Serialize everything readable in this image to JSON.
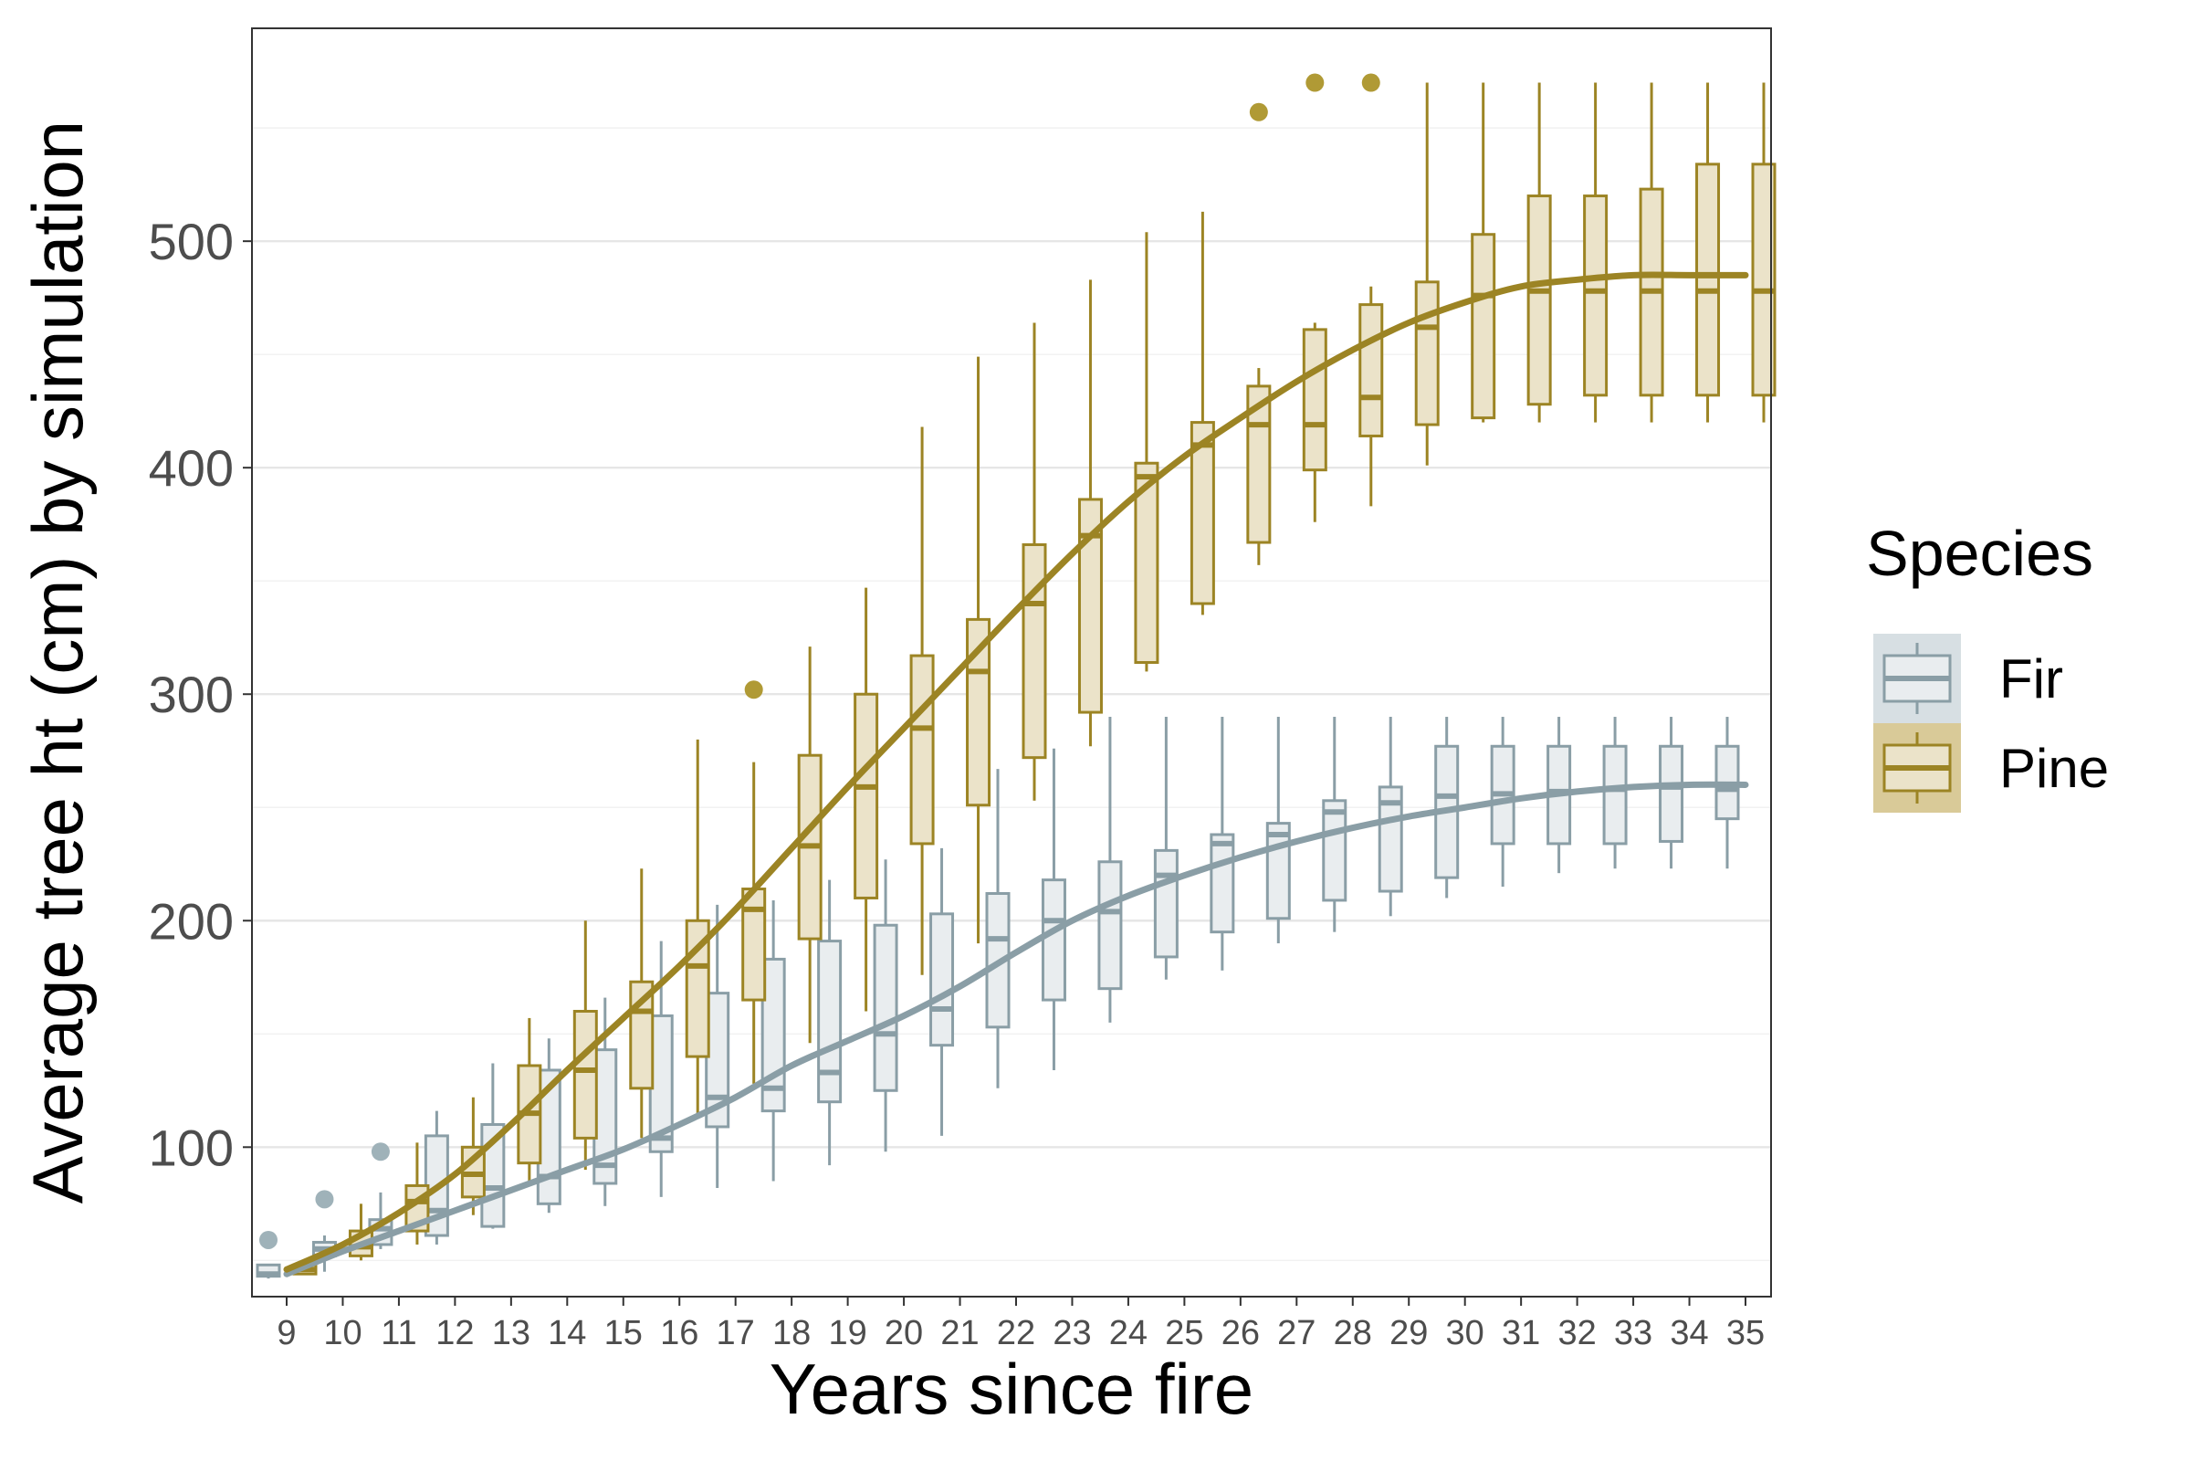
{
  "chart_data": {
    "type": "box",
    "xlabel": "Years since fire",
    "ylabel": "Average tree ht (cm) by simulation",
    "categories": [
      "9",
      "10",
      "11",
      "12",
      "13",
      "14",
      "15",
      "16",
      "17",
      "18",
      "19",
      "20",
      "21",
      "22",
      "23",
      "24",
      "25",
      "26",
      "27",
      "28",
      "29",
      "30",
      "31",
      "32",
      "33",
      "34",
      "35"
    ],
    "ylim": [
      34,
      594
    ],
    "yticks": [
      100,
      200,
      300,
      400,
      500
    ],
    "grid": "horizontal",
    "legend": {
      "title": "Species",
      "position": "right",
      "entries": [
        "Fir",
        "Pine"
      ]
    },
    "series": [
      {
        "name": "Fir",
        "color": "#8a9ea6",
        "fill": "#e9edef",
        "boxes": [
          {
            "x": "9",
            "min": 42,
            "q1": 43,
            "median": 44,
            "q3": 48,
            "max": 48,
            "outliers": [
              59
            ]
          },
          {
            "x": "10",
            "min": 45,
            "q1": 52,
            "median": 55,
            "q3": 58,
            "max": 61,
            "outliers": [
              77
            ]
          },
          {
            "x": "11",
            "min": 55,
            "q1": 57,
            "median": 64,
            "q3": 68,
            "max": 80,
            "outliers": [
              98
            ]
          },
          {
            "x": "12",
            "min": 57,
            "q1": 61,
            "median": 72,
            "q3": 105,
            "max": 116,
            "outliers": []
          },
          {
            "x": "13",
            "min": 64,
            "q1": 65,
            "median": 82,
            "q3": 110,
            "max": 137,
            "outliers": []
          },
          {
            "x": "14",
            "min": 71,
            "q1": 75,
            "median": 87,
            "q3": 134,
            "max": 148,
            "outliers": []
          },
          {
            "x": "15",
            "min": 74,
            "q1": 84,
            "median": 92,
            "q3": 143,
            "max": 166,
            "outliers": []
          },
          {
            "x": "16",
            "min": 78,
            "q1": 98,
            "median": 104,
            "q3": 158,
            "max": 191,
            "outliers": []
          },
          {
            "x": "17",
            "min": 82,
            "q1": 109,
            "median": 122,
            "q3": 168,
            "max": 207,
            "outliers": []
          },
          {
            "x": "18",
            "min": 85,
            "q1": 116,
            "median": 126,
            "q3": 183,
            "max": 209,
            "outliers": []
          },
          {
            "x": "19",
            "min": 92,
            "q1": 120,
            "median": 133,
            "q3": 191,
            "max": 218,
            "outliers": []
          },
          {
            "x": "20",
            "min": 98,
            "q1": 125,
            "median": 150,
            "q3": 198,
            "max": 227,
            "outliers": []
          },
          {
            "x": "21",
            "min": 105,
            "q1": 145,
            "median": 161,
            "q3": 203,
            "max": 232,
            "outliers": []
          },
          {
            "x": "22",
            "min": 126,
            "q1": 153,
            "median": 192,
            "q3": 212,
            "max": 267,
            "outliers": []
          },
          {
            "x": "23",
            "min": 134,
            "q1": 165,
            "median": 200,
            "q3": 218,
            "max": 276,
            "outliers": []
          },
          {
            "x": "24",
            "min": 155,
            "q1": 170,
            "median": 204,
            "q3": 226,
            "max": 290,
            "outliers": []
          },
          {
            "x": "25",
            "min": 174,
            "q1": 184,
            "median": 220,
            "q3": 231,
            "max": 290,
            "outliers": []
          },
          {
            "x": "26",
            "min": 178,
            "q1": 195,
            "median": 234,
            "q3": 238,
            "max": 290,
            "outliers": []
          },
          {
            "x": "27",
            "min": 190,
            "q1": 201,
            "median": 238,
            "q3": 243,
            "max": 290,
            "outliers": []
          },
          {
            "x": "28",
            "min": 195,
            "q1": 209,
            "median": 248,
            "q3": 253,
            "max": 290,
            "outliers": []
          },
          {
            "x": "29",
            "min": 202,
            "q1": 213,
            "median": 252,
            "q3": 259,
            "max": 290,
            "outliers": []
          },
          {
            "x": "30",
            "min": 210,
            "q1": 219,
            "median": 255,
            "q3": 277,
            "max": 290,
            "outliers": []
          },
          {
            "x": "31",
            "min": 215,
            "q1": 234,
            "median": 256,
            "q3": 277,
            "max": 290,
            "outliers": []
          },
          {
            "x": "32",
            "min": 221,
            "q1": 234,
            "median": 257,
            "q3": 277,
            "max": 290,
            "outliers": []
          },
          {
            "x": "33",
            "min": 223,
            "q1": 234,
            "median": 258,
            "q3": 277,
            "max": 290,
            "outliers": []
          },
          {
            "x": "34",
            "min": 223,
            "q1": 235,
            "median": 259,
            "q3": 277,
            "max": 290,
            "outliers": []
          },
          {
            "x": "35",
            "min": 223,
            "q1": 245,
            "median": 258,
            "q3": 277,
            "max": 290,
            "outliers": []
          }
        ],
        "smooth": [
          44,
          54,
          63,
          72,
          81,
          90,
          99,
          110,
          122,
          136,
          147,
          158,
          171,
          186,
          200,
          211,
          220,
          228,
          235,
          241,
          246,
          250,
          254,
          257,
          259,
          260,
          260
        ]
      },
      {
        "name": "Pine",
        "color": "#9c8424",
        "fill": "#ebe3c9",
        "boxes": [
          {
            "x": "9",
            "min": 44,
            "q1": 44,
            "median": 46,
            "q3": 48,
            "max": 48,
            "outliers": []
          },
          {
            "x": "10",
            "min": 50,
            "q1": 52,
            "median": 56,
            "q3": 63,
            "max": 75,
            "outliers": []
          },
          {
            "x": "11",
            "min": 57,
            "q1": 63,
            "median": 76,
            "q3": 83,
            "max": 102,
            "outliers": []
          },
          {
            "x": "12",
            "min": 70,
            "q1": 78,
            "median": 88,
            "q3": 100,
            "max": 122,
            "outliers": []
          },
          {
            "x": "13",
            "min": 83,
            "q1": 93,
            "median": 115,
            "q3": 136,
            "max": 157,
            "outliers": []
          },
          {
            "x": "14",
            "min": 90,
            "q1": 104,
            "median": 134,
            "q3": 160,
            "max": 200,
            "outliers": []
          },
          {
            "x": "15",
            "min": 104,
            "q1": 126,
            "median": 160,
            "q3": 173,
            "max": 223,
            "outliers": []
          },
          {
            "x": "16",
            "min": 114,
            "q1": 140,
            "median": 180,
            "q3": 200,
            "max": 280,
            "outliers": []
          },
          {
            "x": "17",
            "min": 128,
            "q1": 165,
            "median": 205,
            "q3": 214,
            "max": 270,
            "outliers": [
              302
            ]
          },
          {
            "x": "18",
            "min": 146,
            "q1": 192,
            "median": 233,
            "q3": 273,
            "max": 321,
            "outliers": []
          },
          {
            "x": "19",
            "min": 160,
            "q1": 210,
            "median": 259,
            "q3": 300,
            "max": 347,
            "outliers": []
          },
          {
            "x": "20",
            "min": 176,
            "q1": 234,
            "median": 285,
            "q3": 317,
            "max": 418,
            "outliers": []
          },
          {
            "x": "21",
            "min": 190,
            "q1": 251,
            "median": 310,
            "q3": 333,
            "max": 449,
            "outliers": []
          },
          {
            "x": "22",
            "min": 253,
            "q1": 272,
            "median": 340,
            "q3": 366,
            "max": 464,
            "outliers": []
          },
          {
            "x": "23",
            "min": 277,
            "q1": 292,
            "median": 370,
            "q3": 386,
            "max": 483,
            "outliers": []
          },
          {
            "x": "24",
            "min": 310,
            "q1": 314,
            "median": 396,
            "q3": 402,
            "max": 504,
            "outliers": []
          },
          {
            "x": "25",
            "min": 335,
            "q1": 340,
            "median": 410,
            "q3": 420,
            "max": 513,
            "outliers": []
          },
          {
            "x": "26",
            "min": 357,
            "q1": 367,
            "median": 419,
            "q3": 436,
            "max": 444,
            "outliers": [
              557
            ]
          },
          {
            "x": "27",
            "min": 376,
            "q1": 399,
            "median": 419,
            "q3": 461,
            "max": 464,
            "outliers": [
              570
            ]
          },
          {
            "x": "28",
            "min": 383,
            "q1": 414,
            "median": 431,
            "q3": 472,
            "max": 480,
            "outliers": [
              570
            ]
          },
          {
            "x": "29",
            "min": 401,
            "q1": 419,
            "median": 462,
            "q3": 482,
            "max": 570,
            "outliers": []
          },
          {
            "x": "30",
            "min": 420,
            "q1": 422,
            "median": 476,
            "q3": 503,
            "max": 570,
            "outliers": []
          },
          {
            "x": "31",
            "min": 420,
            "q1": 428,
            "median": 478,
            "q3": 520,
            "max": 570,
            "outliers": []
          },
          {
            "x": "32",
            "min": 420,
            "q1": 432,
            "median": 478,
            "q3": 520,
            "max": 570,
            "outliers": []
          },
          {
            "x": "33",
            "min": 420,
            "q1": 432,
            "median": 478,
            "q3": 523,
            "max": 570,
            "outliers": []
          },
          {
            "x": "34",
            "min": 420,
            "q1": 432,
            "median": 478,
            "q3": 534,
            "max": 570,
            "outliers": []
          },
          {
            "x": "35",
            "min": 420,
            "q1": 432,
            "median": 478,
            "q3": 534,
            "max": 570,
            "outliers": []
          }
        ],
        "smooth": [
          46,
          57,
          71,
          88,
          110,
          134,
          157,
          180,
          205,
          232,
          259,
          285,
          311,
          337,
          362,
          385,
          405,
          422,
          438,
          452,
          464,
          473,
          480,
          483,
          485,
          485,
          485
        ]
      }
    ]
  }
}
